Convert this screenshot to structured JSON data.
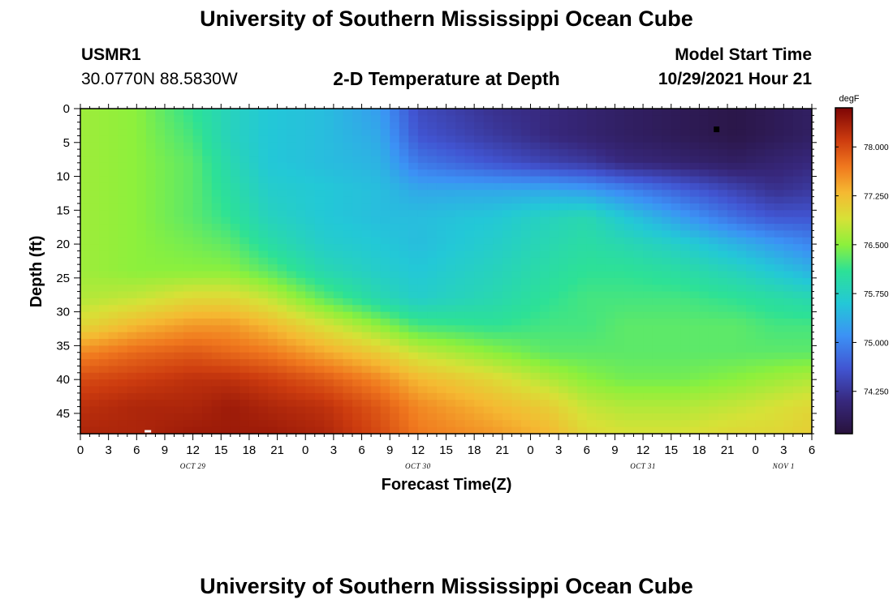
{
  "header": {
    "title": "University of Southern Mississippi Ocean Cube",
    "station": "USMR1",
    "coords": "30.0770N  88.5830W",
    "plot_title": "2-D Temperature at Depth",
    "model_label": "Model Start Time",
    "model_time": "10/29/2021 Hour 21"
  },
  "footer": {
    "title": "University of Southern Mississippi Ocean Cube"
  },
  "chart_data": {
    "type": "heatmap",
    "title": "2-D Temperature at Depth",
    "xlabel": "Forecast Time(Z)",
    "ylabel": "Depth (ft)",
    "units": "degF",
    "x_tick_labels": [
      "0",
      "3",
      "6",
      "9",
      "12",
      "15",
      "18",
      "21",
      "0",
      "3",
      "6",
      "9",
      "12",
      "15",
      "18",
      "21",
      "0",
      "3",
      "6",
      "9",
      "12",
      "15",
      "18",
      "21",
      "0",
      "3",
      "6"
    ],
    "x_range_hours": [
      0,
      78
    ],
    "date_labels": [
      "OCT 29",
      "OCT 30",
      "OCT 31",
      "NOV 1"
    ],
    "y_ticks": [
      0,
      5,
      10,
      15,
      20,
      25,
      30,
      35,
      40,
      45
    ],
    "y_range": [
      0,
      48
    ],
    "colorbar": {
      "labels": [
        "78.000",
        "77.250",
        "76.500",
        "75.750",
        "75.000",
        "74.250"
      ],
      "values": [
        78.0,
        77.25,
        76.5,
        75.75,
        75.0,
        74.25
      ],
      "range": [
        73.6,
        78.6
      ]
    },
    "grid_hours": [
      0,
      6,
      12,
      16,
      20,
      26,
      32,
      36,
      44,
      50,
      54,
      58,
      64,
      70,
      74,
      78
    ],
    "grid_depths": [
      0,
      4,
      8,
      12,
      16,
      20,
      24,
      28,
      32,
      36,
      40,
      44,
      48
    ],
    "grid_values": [
      [
        76.6,
        76.5,
        76.1,
        75.8,
        75.6,
        75.5,
        75.2,
        74.5,
        74.2,
        74.1,
        74.0,
        73.9,
        73.8,
        73.7,
        73.8,
        73.9
      ],
      [
        76.6,
        76.5,
        76.2,
        75.8,
        75.6,
        75.5,
        75.3,
        74.6,
        74.3,
        74.1,
        74.0,
        73.9,
        73.8,
        73.7,
        73.8,
        73.9
      ],
      [
        76.6,
        76.5,
        76.3,
        75.9,
        75.6,
        75.5,
        75.4,
        74.9,
        74.6,
        74.4,
        74.3,
        74.1,
        74.0,
        73.9,
        74.0,
        74.1
      ],
      [
        76.6,
        76.5,
        76.3,
        76.0,
        75.7,
        75.6,
        75.5,
        75.3,
        75.3,
        75.3,
        75.2,
        75.0,
        74.7,
        74.4,
        74.2,
        74.3
      ],
      [
        76.6,
        76.5,
        76.3,
        76.1,
        75.8,
        75.6,
        75.5,
        75.5,
        75.6,
        75.8,
        75.9,
        75.6,
        75.2,
        74.8,
        74.6,
        74.6
      ],
      [
        76.6,
        76.5,
        76.4,
        76.3,
        76.0,
        75.7,
        75.6,
        75.5,
        75.7,
        75.9,
        76.0,
        75.9,
        75.7,
        75.4,
        75.2,
        75.0
      ],
      [
        76.6,
        76.5,
        76.5,
        76.5,
        76.3,
        75.9,
        75.7,
        75.6,
        75.8,
        76.0,
        76.1,
        76.1,
        76.0,
        75.8,
        75.6,
        75.4
      ],
      [
        76.7,
        76.8,
        77.0,
        77.0,
        76.8,
        76.3,
        75.9,
        75.7,
        75.9,
        76.1,
        76.2,
        76.2,
        76.2,
        76.1,
        76.0,
        75.9
      ],
      [
        77.0,
        77.3,
        77.5,
        77.5,
        77.3,
        76.9,
        76.5,
        76.2,
        76.1,
        76.2,
        76.2,
        76.3,
        76.3,
        76.3,
        76.2,
        76.2
      ],
      [
        77.6,
        77.8,
        77.9,
        77.8,
        77.7,
        77.4,
        77.1,
        76.8,
        76.5,
        76.3,
        76.3,
        76.3,
        76.3,
        76.3,
        76.3,
        76.3
      ],
      [
        78.0,
        78.1,
        78.2,
        78.2,
        78.1,
        77.9,
        77.6,
        77.3,
        77.0,
        76.7,
        76.5,
        76.4,
        76.4,
        76.5,
        76.6,
        76.7
      ],
      [
        78.2,
        78.3,
        78.3,
        78.4,
        78.3,
        78.2,
        77.9,
        77.6,
        77.3,
        77.1,
        76.8,
        76.7,
        76.7,
        76.8,
        76.9,
        77.0
      ],
      [
        78.3,
        78.3,
        78.4,
        78.4,
        78.4,
        78.3,
        78.0,
        77.7,
        77.5,
        77.3,
        77.0,
        76.9,
        76.9,
        77.0,
        77.0,
        77.1
      ]
    ]
  }
}
